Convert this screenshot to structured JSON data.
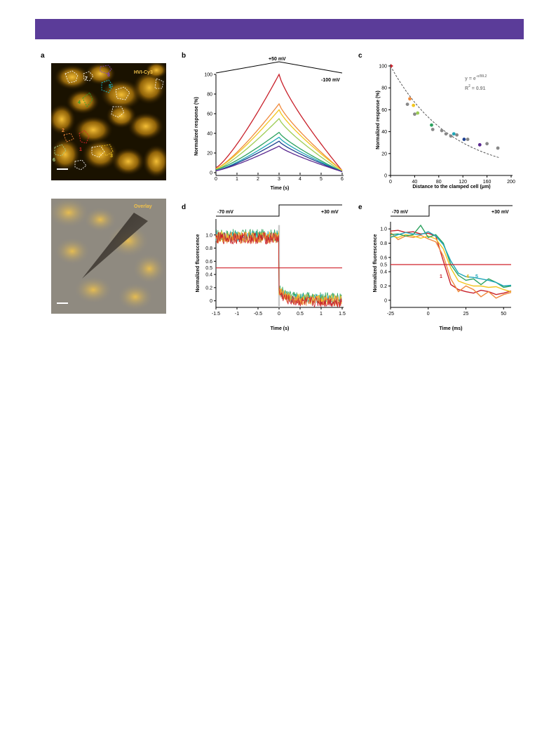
{
  "header": {},
  "panels": {
    "a": {
      "letter": "a",
      "image_label": "HVI-Cy3",
      "overlay_label": "Overlay",
      "cell_labels": [
        "1",
        "2",
        "3",
        "4",
        "5",
        "6",
        "7",
        "8"
      ],
      "colors": {
        "1": "#d62728",
        "2": "#f08a3c",
        "3": "#e8c020",
        "4": "#2ca02c",
        "5": "#17becf",
        "6": "#a8d08d",
        "7": "#ffffff",
        "8": "#7b3fbf"
      }
    },
    "b": {
      "letter": "b",
      "protocol_peak": "+50 mV",
      "protocol_base": "-100 mV",
      "xlabel": "Time (s)",
      "ylabel": "Normalized response (%)"
    },
    "c": {
      "letter": "c",
      "equation": "y = e",
      "equation_exp": "-x/99.2",
      "r2_prefix": "R",
      "r2_sup": "2",
      "r2_value": " = 0.91",
      "xlabel": "Distance to the clamped cell (",
      "xlabel_unit": "μm)",
      "ylabel": "Normalized response (%)"
    },
    "d": {
      "letter": "d",
      "step_from": "-70 mV",
      "step_to": "+30 mV",
      "xlabel": "Time (s)",
      "ylabel": "Normalized fluorescence",
      "half_label": "0.5"
    },
    "e": {
      "letter": "e",
      "step_from": "-70 mV",
      "step_to": "+30 mV",
      "xlabel": "Time (ms)",
      "ylabel": "Normalized fluorescence",
      "half_label": "0.5",
      "trace_labels": [
        "1",
        "4",
        "5"
      ]
    }
  },
  "colors": {
    "red": "#c8202a",
    "orange": "#f08a3c",
    "yellow": "#f2c61f",
    "lightgreen": "#9ccc55",
    "green": "#2ca25f",
    "cyan": "#1fa6b8",
    "navy": "#1c3f8f",
    "purple": "#5b2a90",
    "gray": "#888888"
  },
  "chart_data": [
    {
      "id": "b",
      "type": "line",
      "xlabel": "Time (s)",
      "ylabel": "Normalized response (%)",
      "xlim": [
        0,
        6
      ],
      "ylim": [
        0,
        100
      ],
      "xticks": [
        0,
        1,
        2,
        3,
        4,
        5,
        6
      ],
      "yticks": [
        0,
        20,
        40,
        60,
        80,
        100
      ],
      "x": [
        0,
        3,
        6
      ],
      "series": [
        {
          "color": "#c8202a",
          "values": [
            5,
            100,
            2
          ]
        },
        {
          "color": "#f08a3c",
          "values": [
            4,
            70,
            2
          ]
        },
        {
          "color": "#f2c61f",
          "values": [
            4,
            64,
            2
          ]
        },
        {
          "color": "#9ccc55",
          "values": [
            3,
            55,
            1
          ]
        },
        {
          "color": "#2ca25f",
          "values": [
            3,
            41,
            1
          ]
        },
        {
          "color": "#1fa6b8",
          "values": [
            2,
            36,
            1
          ]
        },
        {
          "color": "#1c3f8f",
          "values": [
            2,
            32,
            1
          ]
        },
        {
          "color": "#5b2a90",
          "values": [
            2,
            27,
            1
          ]
        }
      ]
    },
    {
      "id": "c",
      "type": "scatter",
      "xlabel": "Distance to the clamped cell (μm)",
      "ylabel": "Normalized response (%)",
      "xlim": [
        0,
        200
      ],
      "ylim": [
        0,
        100
      ],
      "xticks": [
        0,
        40,
        80,
        120,
        160,
        200
      ],
      "yticks": [
        0,
        20,
        40,
        60,
        80,
        100
      ],
      "fit": {
        "type": "exponential",
        "length_constant": 99.2,
        "r2": 0.91
      },
      "points": [
        {
          "x": 0,
          "y": 100,
          "color": "#c8202a"
        },
        {
          "x": 32,
          "y": 70,
          "color": "#f08a3c"
        },
        {
          "x": 38,
          "y": 64,
          "color": "#f2c61f"
        },
        {
          "x": 45,
          "y": 57,
          "color": "#9ccc55"
        },
        {
          "x": 68,
          "y": 46,
          "color": "#2ca25f"
        },
        {
          "x": 105,
          "y": 38,
          "color": "#1fa6b8"
        },
        {
          "x": 122,
          "y": 33,
          "color": "#1c3f8f"
        },
        {
          "x": 148,
          "y": 28,
          "color": "#5b2a90"
        },
        {
          "x": 28,
          "y": 65,
          "color": "#888888"
        },
        {
          "x": 40,
          "y": 56,
          "color": "#888888"
        },
        {
          "x": 70,
          "y": 42,
          "color": "#888888"
        },
        {
          "x": 85,
          "y": 41,
          "color": "#888888"
        },
        {
          "x": 92,
          "y": 38,
          "color": "#888888"
        },
        {
          "x": 100,
          "y": 36,
          "color": "#888888"
        },
        {
          "x": 110,
          "y": 37,
          "color": "#888888"
        },
        {
          "x": 128,
          "y": 33,
          "color": "#888888"
        },
        {
          "x": 160,
          "y": 29,
          "color": "#888888"
        },
        {
          "x": 178,
          "y": 25,
          "color": "#888888"
        }
      ]
    },
    {
      "id": "d",
      "type": "line",
      "xlabel": "Time (s)",
      "ylabel": "Normalized fluorescence",
      "xlim": [
        -1.5,
        1.5
      ],
      "ylim": [
        -0.1,
        1.2
      ],
      "xticks": [
        -1.5,
        -1,
        -0.5,
        0,
        0.5,
        1,
        1.5
      ],
      "yticks": [
        0,
        0.2,
        0.4,
        0.6,
        0.8,
        1.0
      ],
      "threshold": 0.5,
      "step_time": 0,
      "series": [
        {
          "color": "#2ca25f",
          "before": 1.0,
          "after": 0.05
        },
        {
          "color": "#1fa6b8",
          "before": 0.98,
          "after": 0.03
        },
        {
          "color": "#f2c61f",
          "before": 0.97,
          "after": 0.02
        },
        {
          "color": "#f08a3c",
          "before": 0.96,
          "after": 0.0
        },
        {
          "color": "#c8202a",
          "before": 0.95,
          "after": -0.02
        }
      ]
    },
    {
      "id": "e",
      "type": "line",
      "xlabel": "Time (ms)",
      "ylabel": "Normalized fluorescence",
      "xlim": [
        -25,
        55
      ],
      "ylim": [
        -0.1,
        1.1
      ],
      "xticks": [
        -25,
        0,
        25,
        50
      ],
      "yticks": [
        0,
        0.2,
        0.4,
        0.6,
        0.8,
        1.0
      ],
      "threshold": 0.5,
      "x": [
        -25,
        -20,
        -15,
        -10,
        -5,
        0,
        5,
        10,
        15,
        20,
        25,
        30,
        35,
        40,
        45,
        50,
        55
      ],
      "series": [
        {
          "color": "#c8202a",
          "values": [
            0.97,
            0.98,
            0.95,
            0.96,
            0.93,
            0.94,
            0.9,
            0.55,
            0.22,
            0.15,
            0.12,
            0.1,
            0.14,
            0.12,
            0.08,
            0.1,
            0.13
          ]
        },
        {
          "color": "#f08a3c",
          "values": [
            0.95,
            0.85,
            0.9,
            0.88,
            0.91,
            0.86,
            0.82,
            0.62,
            0.3,
            0.12,
            0.2,
            0.15,
            0.05,
            0.12,
            0.03,
            0.08,
            0.11
          ]
        },
        {
          "color": "#f2c61f",
          "values": [
            0.9,
            0.88,
            0.92,
            0.9,
            0.87,
            0.9,
            0.86,
            0.72,
            0.45,
            0.27,
            0.23,
            0.2,
            0.2,
            0.18,
            0.19,
            0.15,
            0.12
          ]
        },
        {
          "color": "#2ca25f",
          "values": [
            0.92,
            0.93,
            0.9,
            0.92,
            1.05,
            0.88,
            0.92,
            0.8,
            0.5,
            0.35,
            0.28,
            0.3,
            0.22,
            0.3,
            0.25,
            0.18,
            0.2
          ]
        },
        {
          "color": "#1fa6b8",
          "values": [
            0.88,
            0.92,
            0.95,
            0.93,
            0.92,
            0.96,
            0.9,
            0.78,
            0.55,
            0.38,
            0.33,
            0.32,
            0.3,
            0.28,
            0.25,
            0.2,
            0.21
          ]
        }
      ]
    }
  ]
}
